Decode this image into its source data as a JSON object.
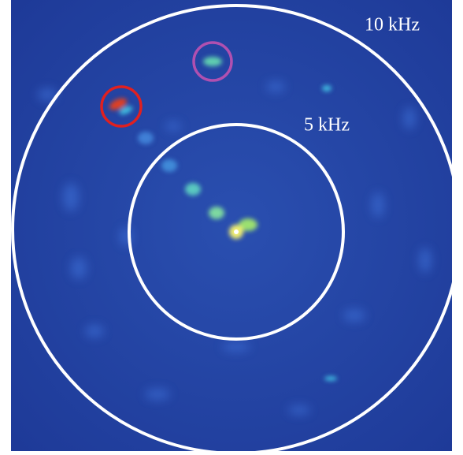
{
  "rings": [
    {
      "label": "10 kHz"
    },
    {
      "label": "5 kHz"
    }
  ]
}
